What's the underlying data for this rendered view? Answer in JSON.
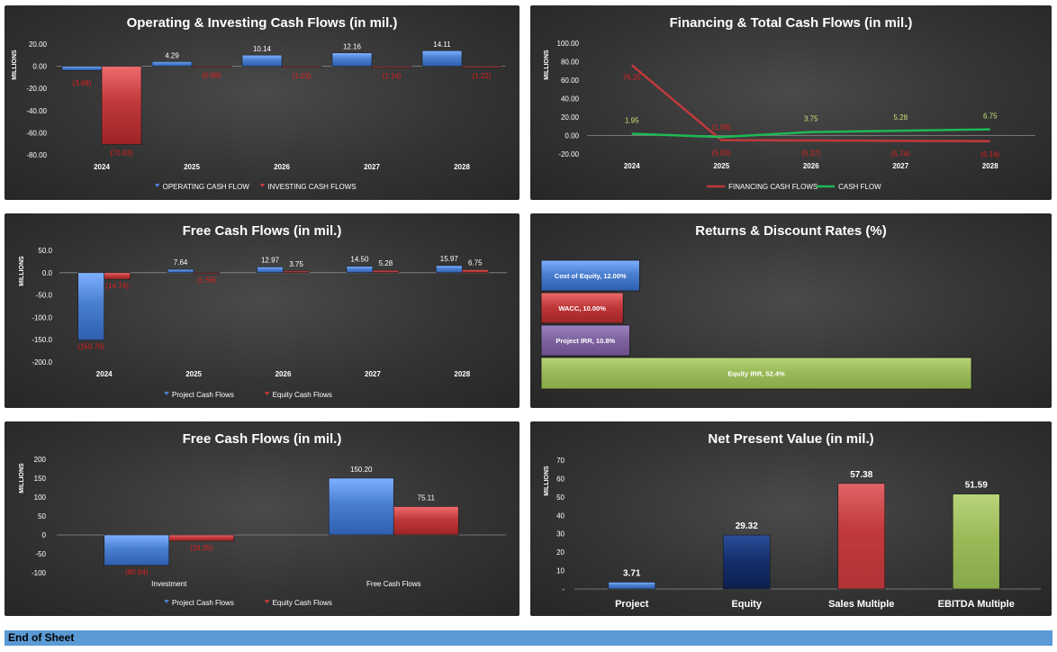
{
  "footer": "End of Sheet",
  "colors": {
    "blue": "#4a7fd0",
    "blue_dark": "#1f4e9a",
    "red": "#c0393b",
    "red_dark": "#8e1f20",
    "green_line": "#1db954",
    "purple": "#8064a2",
    "green_bar": "#9bbb59",
    "navy": "#15306e",
    "neg_label": "#e01e1e"
  },
  "chart_data": [
    {
      "type": "bar",
      "title": "Operating & Investing Cash Flows (in mil.)",
      "ylabel": "MILLIONS",
      "categories": [
        "2024",
        "2025",
        "2026",
        "2027",
        "2028"
      ],
      "series": [
        {
          "name": "OPERATING CASH FLOW",
          "values": [
            -3.68,
            4.29,
            10.14,
            12.16,
            14.11
          ],
          "labels": [
            "(3.68)",
            "4.29",
            "10.14",
            "12.16",
            "14.11"
          ]
        },
        {
          "name": "INVESTING CASH FLOWS",
          "values": [
            -70.63,
            -0.88,
            -1.03,
            -1.14,
            -1.22
          ],
          "labels": [
            "(70.63)",
            "(0.88)",
            "(1.03)",
            "(1.14)",
            "(1.22)"
          ]
        }
      ],
      "yticks": [
        "20.00",
        "0.00",
        "-20.00",
        "-40.00",
        "-60.00",
        "-80.00"
      ],
      "ylim": [
        -80,
        20
      ],
      "legend": "bottom"
    },
    {
      "type": "line",
      "title": "Financing & Total Cash Flows (in mil.)",
      "ylabel": "MILLIONS",
      "categories": [
        "2024",
        "2025",
        "2026",
        "2027",
        "2028"
      ],
      "series": [
        {
          "name": "FINANCING CASH FLOWS",
          "values": [
            76.25,
            -5.03,
            -5.37,
            -5.74,
            -6.14
          ],
          "labels": [
            "76.25",
            "(5.03)",
            "(5.37)",
            "(5.74)",
            "(6.14)"
          ]
        },
        {
          "name": "CASH FLOW",
          "values": [
            1.95,
            -1.58,
            3.75,
            5.28,
            6.75
          ],
          "labels": [
            "1.95",
            "(1.58)",
            "3.75",
            "5.28",
            "6.75"
          ]
        }
      ],
      "yticks": [
        "100.00",
        "80.00",
        "60.00",
        "40.00",
        "20.00",
        "0.00",
        "-20.00"
      ],
      "ylim": [
        -20,
        100
      ],
      "legend": "bottom"
    },
    {
      "type": "bar",
      "title": "Free Cash Flows (in mil.)",
      "ylabel": "MILLIONS",
      "categories": [
        "2024",
        "2025",
        "2026",
        "2027",
        "2028"
      ],
      "series": [
        {
          "name": "Project Cash Flows",
          "values": [
            -150.7,
            7.64,
            12.97,
            14.5,
            15.97
          ],
          "labels": [
            "(150.70)",
            "7.64",
            "12.97",
            "14.50",
            "15.97"
          ]
        },
        {
          "name": "Equity Cash Flows",
          "values": [
            -14.74,
            -1.58,
            3.75,
            5.28,
            6.75
          ],
          "labels": [
            "(14.74)",
            "(1.58)",
            "3.75",
            "5.28",
            "6.75"
          ]
        }
      ],
      "yticks": [
        "50.0",
        "0.0",
        "-50.0",
        "-100.0",
        "-150.0",
        "-200.0"
      ],
      "ylim": [
        -200,
        50
      ],
      "legend": "bottom"
    },
    {
      "type": "bar",
      "orientation": "horizontal",
      "title": "Returns & Discount Rates (%)",
      "categories": [
        "Cost of Equity",
        "WACC",
        "Project IRR",
        "Equity IRR"
      ],
      "values": [
        12.0,
        10.0,
        10.8,
        52.4
      ],
      "labels": [
        "Cost of Equity, 12.00%",
        "WACC, 10.00%",
        "Project IRR, 10.8%",
        "Equity IRR, 52.4%"
      ]
    },
    {
      "type": "bar",
      "title": "Free Cash Flows (in mil.)",
      "ylabel": "MILLIONS",
      "categories": [
        "Investment",
        "Free Cash Flows"
      ],
      "series": [
        {
          "name": "Project Cash Flows",
          "values": [
            -80.64,
            150.2
          ],
          "labels": [
            "(80.64)",
            "150.20"
          ]
        },
        {
          "name": "Equity Cash Flows",
          "values": [
            -16.35,
            75.11
          ],
          "labels": [
            "(16.35)",
            "75.11"
          ]
        }
      ],
      "yticks": [
        "200",
        "150",
        "100",
        "50",
        "0",
        "-50",
        "-100"
      ],
      "ylim": [
        -100,
        200
      ],
      "legend": "bottom"
    },
    {
      "type": "bar",
      "title": "Net Present Value (in mil.)",
      "ylabel": "MILLIONS",
      "categories": [
        "Project",
        "Equity",
        "Sales Multiple",
        "EBITDA Multiple"
      ],
      "values": [
        3.71,
        29.32,
        57.38,
        51.59
      ],
      "labels": [
        "3.71",
        "29.32",
        "57.38",
        "51.59"
      ],
      "yticks": [
        "70",
        "60",
        "50",
        "40",
        "30",
        "20",
        "10",
        "-"
      ],
      "ylim": [
        0,
        70
      ]
    }
  ]
}
